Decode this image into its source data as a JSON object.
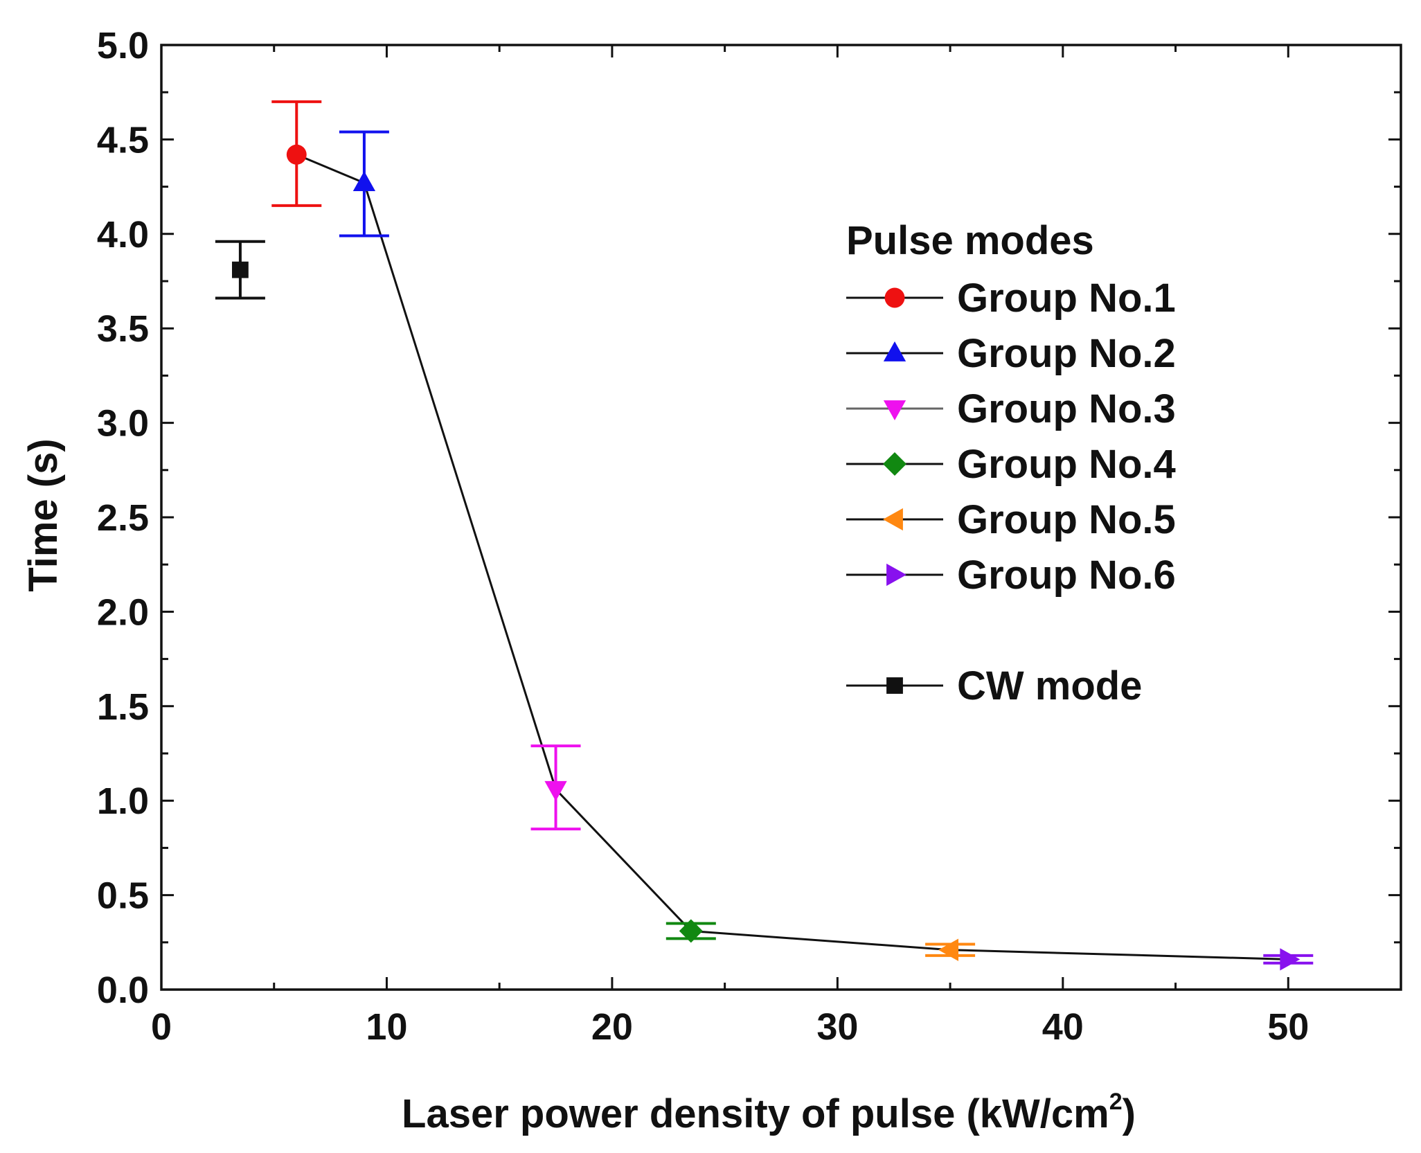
{
  "chart_data": {
    "type": "scatter",
    "title": "",
    "xlabel": "Laser power density of pulse (kW/cm",
    "xlabel_superscript": "2",
    "xlabel_suffix": ")",
    "ylabel": "Time (s)",
    "xlim": [
      0,
      55
    ],
    "ylim": [
      0,
      5
    ],
    "x_ticks": [
      0,
      10,
      20,
      30,
      40,
      50
    ],
    "x_tick_labels": [
      "0",
      "10",
      "20",
      "30",
      "40",
      "50"
    ],
    "y_ticks": [
      0,
      0.5,
      1,
      1.5,
      2,
      2.5,
      3,
      3.5,
      4,
      4.5,
      5
    ],
    "y_tick_labels": [
      "0.0",
      "0.5",
      "1.0",
      "1.5",
      "2.0",
      "2.5",
      "3.0",
      "3.5",
      "4.0",
      "4.5",
      "5.0"
    ],
    "grid": false,
    "legend_placement": "right",
    "legend_title": "Pulse modes",
    "connecting_line": {
      "color": "#111111",
      "points": [
        {
          "x": 6.0,
          "y": 4.42
        },
        {
          "x": 9.0,
          "y": 4.27
        },
        {
          "x": 17.5,
          "y": 1.06
        },
        {
          "x": 23.5,
          "y": 0.31
        },
        {
          "x": 35.0,
          "y": 0.21
        },
        {
          "x": 50.0,
          "y": 0.16
        }
      ]
    },
    "series": [
      {
        "name": "Group No.1",
        "marker": "circle",
        "color": "#ee1111",
        "x": 6.0,
        "y": 4.42,
        "err_low": 4.15,
        "err_high": 4.7
      },
      {
        "name": "Group No.2",
        "marker": "triangle-up",
        "color": "#1111ee",
        "x": 9.0,
        "y": 4.27,
        "err_low": 3.99,
        "err_high": 4.54
      },
      {
        "name": "Group No.3",
        "marker": "triangle-down",
        "color": "#ee11ee",
        "x": 17.5,
        "y": 1.06,
        "err_low": 0.85,
        "err_high": 1.29
      },
      {
        "name": "Group No.4",
        "marker": "diamond",
        "color": "#118811",
        "x": 23.5,
        "y": 0.31,
        "err_low": 0.27,
        "err_high": 0.35
      },
      {
        "name": "Group No.5",
        "marker": "triangle-left",
        "color": "#ff8811",
        "x": 35.0,
        "y": 0.21,
        "err_low": 0.18,
        "err_high": 0.24
      },
      {
        "name": "Group No.6",
        "marker": "triangle-right",
        "color": "#8811ee",
        "x": 50.0,
        "y": 0.16,
        "err_low": 0.14,
        "err_high": 0.18
      },
      {
        "name": "CW mode",
        "marker": "square",
        "color": "#111111",
        "x": 3.5,
        "y": 3.81,
        "err_low": 3.66,
        "err_high": 3.96
      }
    ]
  }
}
